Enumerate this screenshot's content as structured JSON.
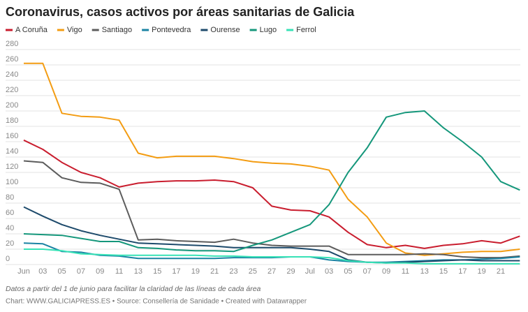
{
  "chart_data": {
    "type": "line",
    "title": "Coronavirus, casos activos por áreas sanitarias de Galicia",
    "note": "Datos a partir del 1 de junio para facilitar la claridad de las líneas de cada área",
    "source": "Chart: WWW.GALICIAPRESS.ES • Source: Consellería de Sanidade • Created with Datawrapper",
    "categories": [
      "Jun",
      "03",
      "05",
      "07",
      "09",
      "11",
      "13",
      "15",
      "17",
      "19",
      "21",
      "23",
      "25",
      "27",
      "29",
      "Jul",
      "03",
      "05",
      "07",
      "09",
      "11",
      "13",
      "15",
      "17",
      "19",
      "21",
      null
    ],
    "ylim": [
      0,
      280
    ],
    "yticks": [
      0,
      20,
      40,
      60,
      80,
      100,
      120,
      140,
      160,
      180,
      200,
      220,
      240,
      260,
      280
    ],
    "grid": true,
    "series": [
      {
        "name": "A Coruña",
        "color": "#c91d2e",
        "values": [
          162,
          150,
          133,
          120,
          113,
          101,
          106,
          108,
          109,
          109,
          110,
          108,
          100,
          76,
          71,
          70,
          62,
          42,
          26,
          22,
          25,
          21,
          25,
          27,
          31,
          28,
          37
        ]
      },
      {
        "name": "Vigo",
        "color": "#f39c12",
        "values": [
          262,
          262,
          197,
          193,
          192,
          188,
          145,
          139,
          141,
          141,
          141,
          138,
          134,
          132,
          131,
          128,
          123,
          85,
          62,
          28,
          15,
          12,
          14,
          16,
          17,
          17,
          20
        ]
      },
      {
        "name": "Santiago",
        "color": "#5c5c5c",
        "values": [
          135,
          133,
          113,
          107,
          106,
          98,
          32,
          33,
          31,
          30,
          29,
          33,
          28,
          25,
          24,
          24,
          24,
          13,
          13,
          13,
          13,
          14,
          13,
          10,
          9,
          9,
          11
        ]
      },
      {
        "name": "Pontevedra",
        "color": "#1a83a3",
        "values": [
          28,
          27,
          17,
          16,
          12,
          11,
          8,
          8,
          8,
          8,
          8,
          9,
          9,
          9,
          10,
          10,
          6,
          4,
          3,
          3,
          4,
          5,
          6,
          6,
          7,
          8,
          10
        ]
      },
      {
        "name": "Ourense",
        "color": "#1d4a6b",
        "values": [
          75,
          63,
          52,
          44,
          38,
          33,
          28,
          27,
          26,
          25,
          24,
          22,
          22,
          22,
          22,
          20,
          17,
          6,
          3,
          2,
          3,
          4,
          5,
          6,
          5,
          5,
          5
        ]
      },
      {
        "name": "Lugo",
        "color": "#15977b",
        "values": [
          40,
          39,
          38,
          34,
          30,
          30,
          22,
          21,
          19,
          18,
          18,
          17,
          25,
          32,
          42,
          52,
          78,
          120,
          152,
          192,
          198,
          200,
          178,
          160,
          140,
          108,
          97
        ]
      },
      {
        "name": "Ferrol",
        "color": "#37e2b6",
        "values": [
          20,
          20,
          18,
          14,
          13,
          12,
          12,
          12,
          12,
          12,
          11,
          11,
          10,
          10,
          10,
          10,
          9,
          5,
          3,
          2,
          2,
          1,
          1,
          1,
          1,
          1,
          1
        ]
      }
    ]
  }
}
